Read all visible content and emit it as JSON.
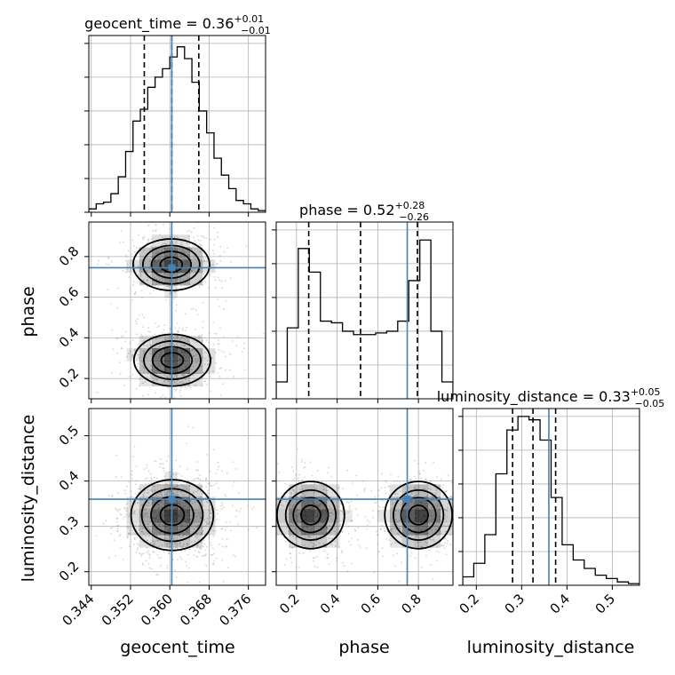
{
  "chart_data": {
    "type": "corner",
    "parameters": [
      "geocent_time",
      "phase",
      "luminosity_distance"
    ],
    "titles": [
      {
        "text": "geocent_time = 0.36",
        "plus": "+0.01",
        "minus": "−0.01"
      },
      {
        "text": "phase = 0.52",
        "plus": "+0.28",
        "minus": "−0.26"
      },
      {
        "text": "luminosity_distance = 0.33",
        "plus": "+0.05",
        "minus": "−0.05"
      }
    ],
    "axis_labels": {
      "x": [
        "geocent_time",
        "phase",
        "luminosity_distance"
      ],
      "y": [
        "phase",
        "luminosity_distance"
      ]
    },
    "ranges": [
      [
        0.3435,
        0.3795
      ],
      [
        0.1,
        0.97
      ],
      [
        0.17,
        0.56
      ]
    ],
    "ticks": [
      [
        0.344,
        0.352,
        0.36,
        0.368,
        0.376
      ],
      [
        0.2,
        0.4,
        0.6,
        0.8
      ],
      [
        0.2,
        0.3,
        0.4,
        0.5
      ]
    ],
    "tick_labels": [
      [
        "0.344",
        "0.352",
        "0.360",
        "0.368",
        "0.376"
      ],
      [
        "0.2",
        "0.4",
        "0.6",
        "0.8"
      ],
      [
        "0.2",
        "0.3",
        "0.4",
        "0.5"
      ]
    ],
    "truths": [
      0.3604,
      0.745,
      0.36
    ],
    "quantiles": [
      [
        0.3548,
        0.3604,
        0.3659
      ],
      [
        0.26,
        0.515,
        0.795
      ],
      [
        0.28,
        0.325,
        0.375
      ]
    ],
    "histograms": [
      [
        0.02,
        0.05,
        0.06,
        0.11,
        0.21,
        0.36,
        0.54,
        0.61,
        0.74,
        0.8,
        0.85,
        0.92,
        0.98,
        0.91,
        0.77,
        0.6,
        0.47,
        0.32,
        0.22,
        0.14,
        0.07,
        0.05,
        0.02,
        0.01
      ],
      [
        0.1,
        0.42,
        0.89,
        0.75,
        0.46,
        0.45,
        0.4,
        0.38,
        0.38,
        0.39,
        0.4,
        0.46,
        0.7,
        0.94,
        0.4,
        0.1
      ],
      [
        0.05,
        0.13,
        0.3,
        0.66,
        0.92,
        1.0,
        0.98,
        0.86,
        0.52,
        0.24,
        0.15,
        0.1,
        0.06,
        0.04,
        0.02,
        0.01
      ]
    ],
    "modes_2d": {
      "phase_vs_geocent_time": [
        {
          "x": 0.3603,
          "y": 0.76,
          "sx": 0.004,
          "sy": 0.065,
          "w": 1.0
        },
        {
          "x": 0.3605,
          "y": 0.29,
          "sx": 0.004,
          "sy": 0.065,
          "w": 1.0
        }
      ],
      "luminosity_distance_vs_geocent_time": [
        {
          "x": 0.3605,
          "y": 0.325,
          "sx": 0.0043,
          "sy": 0.04,
          "w": 1.0
        }
      ],
      "luminosity_distance_vs_phase": [
        {
          "x": 0.27,
          "y": 0.325,
          "sx": 0.085,
          "sy": 0.038,
          "w": 1.0
        },
        {
          "x": 0.8,
          "y": 0.325,
          "sx": 0.085,
          "sy": 0.038,
          "w": 1.0
        }
      ]
    },
    "contour_levels": [
      0.15,
      0.35,
      0.6,
      0.85
    ],
    "colors": {
      "truth": "#4682b4",
      "hist": "#000000",
      "quantile": "#000000",
      "grid": "#b0b0b0",
      "density": "#000000"
    }
  }
}
